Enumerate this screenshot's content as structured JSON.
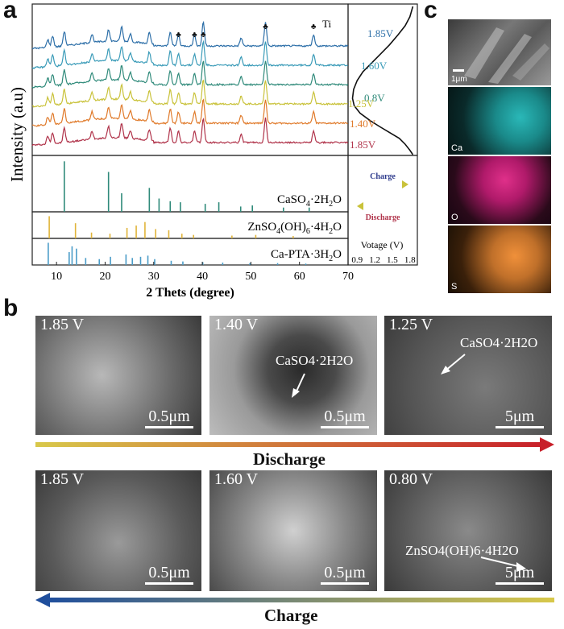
{
  "panel_labels": {
    "a": "a",
    "b": "b",
    "c": "c"
  },
  "colors": {
    "v185d": "#b0334a",
    "v140": "#e07a2a",
    "v125": "#c9c23a",
    "v080": "#2f8a7a",
    "v160": "#3a9bb8",
    "v185c": "#2d6fa8",
    "ref_gypsum": "#2f8a7a",
    "ref_zinc": "#e0b43a",
    "ref_capta": "#4a9cc8",
    "ti_mark": "#111111"
  },
  "chart_data": {
    "type": "line",
    "title": "",
    "xlabel": "2 Thets (degree)",
    "ylabel": "Intensity (a.u)",
    "xlim": [
      5,
      70
    ],
    "x_ticks": [
      "10",
      "20",
      "30",
      "40",
      "50",
      "60",
      "70"
    ],
    "ti_label": "Ti",
    "ti_peaks": [
      35.1,
      38.4,
      40.2,
      53.0,
      62.9
    ],
    "peaks": [
      8.2,
      9.2,
      11.6,
      17.3,
      20.7,
      23.4,
      25.2,
      29.1,
      33.4,
      35.1,
      38.4,
      40.2,
      48.0,
      53.0,
      62.9
    ],
    "series": [
      {
        "name": "1.85V (charge)",
        "color": "#2d6fa8",
        "offset": 6
      },
      {
        "name": "1.60V",
        "color": "#3a9bb8",
        "offset": 5
      },
      {
        "name": "0.8V",
        "color": "#2f8a7a",
        "offset": 4
      },
      {
        "name": "1.25V",
        "color": "#c9c23a",
        "offset": 3
      },
      {
        "name": "1.40V",
        "color": "#e07a2a",
        "offset": 2
      },
      {
        "name": "1.85V (discharge)",
        "color": "#b0334a",
        "offset": 1
      }
    ],
    "references": [
      {
        "name": "CaSO4·2H2O",
        "color": "#2f8a7a",
        "x": [
          11.6,
          20.7,
          23.4,
          29.1,
          31.1,
          33.4,
          35.5,
          40.6,
          43.4,
          47.9,
          50.3,
          56.7,
          62.0
        ],
        "h": [
          0.95,
          0.75,
          0.35,
          0.45,
          0.25,
          0.2,
          0.18,
          0.15,
          0.18,
          0.1,
          0.12,
          0.08,
          0.08
        ]
      },
      {
        "name": "ZnSO4(OH)6·4H2O",
        "color": "#e0b43a",
        "x": [
          8.5,
          13.9,
          17.2,
          21.0,
          24.5,
          26.4,
          28.2,
          30.4,
          33.1,
          35.8,
          38.2,
          46.1,
          51.0,
          58.7
        ],
        "h": [
          0.95,
          0.65,
          0.25,
          0.2,
          0.45,
          0.55,
          0.7,
          0.4,
          0.35,
          0.2,
          0.15,
          0.12,
          0.15,
          0.1
        ]
      },
      {
        "name": "Ca-PTA·3H2O",
        "color": "#4a9cc8",
        "x": [
          8.3,
          12.6,
          13.2,
          14.1,
          16.0,
          18.8,
          21.1,
          24.3,
          25.6,
          27.3,
          28.8,
          30.2,
          33.6,
          36.0,
          40.1,
          44.2,
          49.8,
          55.5,
          61.3
        ],
        "h": [
          0.95,
          0.55,
          0.8,
          0.7,
          0.3,
          0.25,
          0.35,
          0.45,
          0.3,
          0.35,
          0.4,
          0.25,
          0.18,
          0.15,
          0.12,
          0.1,
          0.08,
          0.08,
          0.06
        ]
      }
    ],
    "voltage_curve": {
      "xlabel": "Votage (V)",
      "x_ticks": [
        "0.9",
        "1.2",
        "1.5",
        "1.8"
      ],
      "xlim": [
        0.8,
        1.9
      ],
      "points_voltage": [
        1.85,
        1.8,
        1.72,
        1.62,
        1.45,
        1.28,
        1.12,
        0.95,
        0.85,
        0.82,
        0.84,
        0.9,
        1.0,
        1.15,
        1.3,
        1.45,
        1.6,
        1.72,
        1.8,
        1.85
      ],
      "points_progress": [
        0,
        0.03,
        0.07,
        0.11,
        0.15,
        0.19,
        0.23,
        0.28,
        0.33,
        0.38,
        0.44,
        0.5,
        0.56,
        0.62,
        0.68,
        0.74,
        0.81,
        0.87,
        0.93,
        1.0
      ],
      "labels": [
        {
          "text": "1.85V",
          "color": "#2d6fa8"
        },
        {
          "text": "1.60V",
          "color": "#3a9bb8"
        },
        {
          "text": "0.8V",
          "color": "#2f8a7a"
        },
        {
          "text": "1.25V",
          "color": "#c9c23a"
        },
        {
          "text": "1.40V",
          "color": "#e07a2a"
        },
        {
          "text": "1.85V",
          "color": "#b0334a"
        }
      ],
      "charge_label": "Charge",
      "discharge_label": "Discharge"
    }
  },
  "ref_labels": {
    "gypsum": {
      "main": "CaSO",
      "s1": "4",
      "mid": "·2H",
      "s2": "2",
      "end": "O"
    },
    "zinc": {
      "main": "ZnSO",
      "s1": "4",
      "mid": "(OH)",
      "s2": "6",
      "end": "·4H",
      "s3": "2",
      "tail": "O"
    },
    "capta": {
      "main": "Ca-PTA·3H",
      "s1": "2",
      "end": "O"
    }
  },
  "sem_top": [
    {
      "voltage": "1.85 V",
      "scale": "0.5μm"
    },
    {
      "voltage": "1.40 V",
      "scale": "0.5μm",
      "annotation": "CaSO4·2H2O"
    },
    {
      "voltage": "1.25 V",
      "scale": "5μm",
      "annotation": "CaSO4·2H2O"
    }
  ],
  "sem_bottom": [
    {
      "voltage": "1.85 V",
      "scale": "0.5μm"
    },
    {
      "voltage": "1.60 V",
      "scale": "0.5μm"
    },
    {
      "voltage": "0.80 V",
      "scale": "5μm",
      "annotation": "ZnSO4(OH)6·4H2O"
    }
  ],
  "discharge_label": "Discharge",
  "charge_label": "Charge",
  "mapping": {
    "scale": "1μm",
    "elements": [
      "Ca",
      "O",
      "S"
    ]
  }
}
